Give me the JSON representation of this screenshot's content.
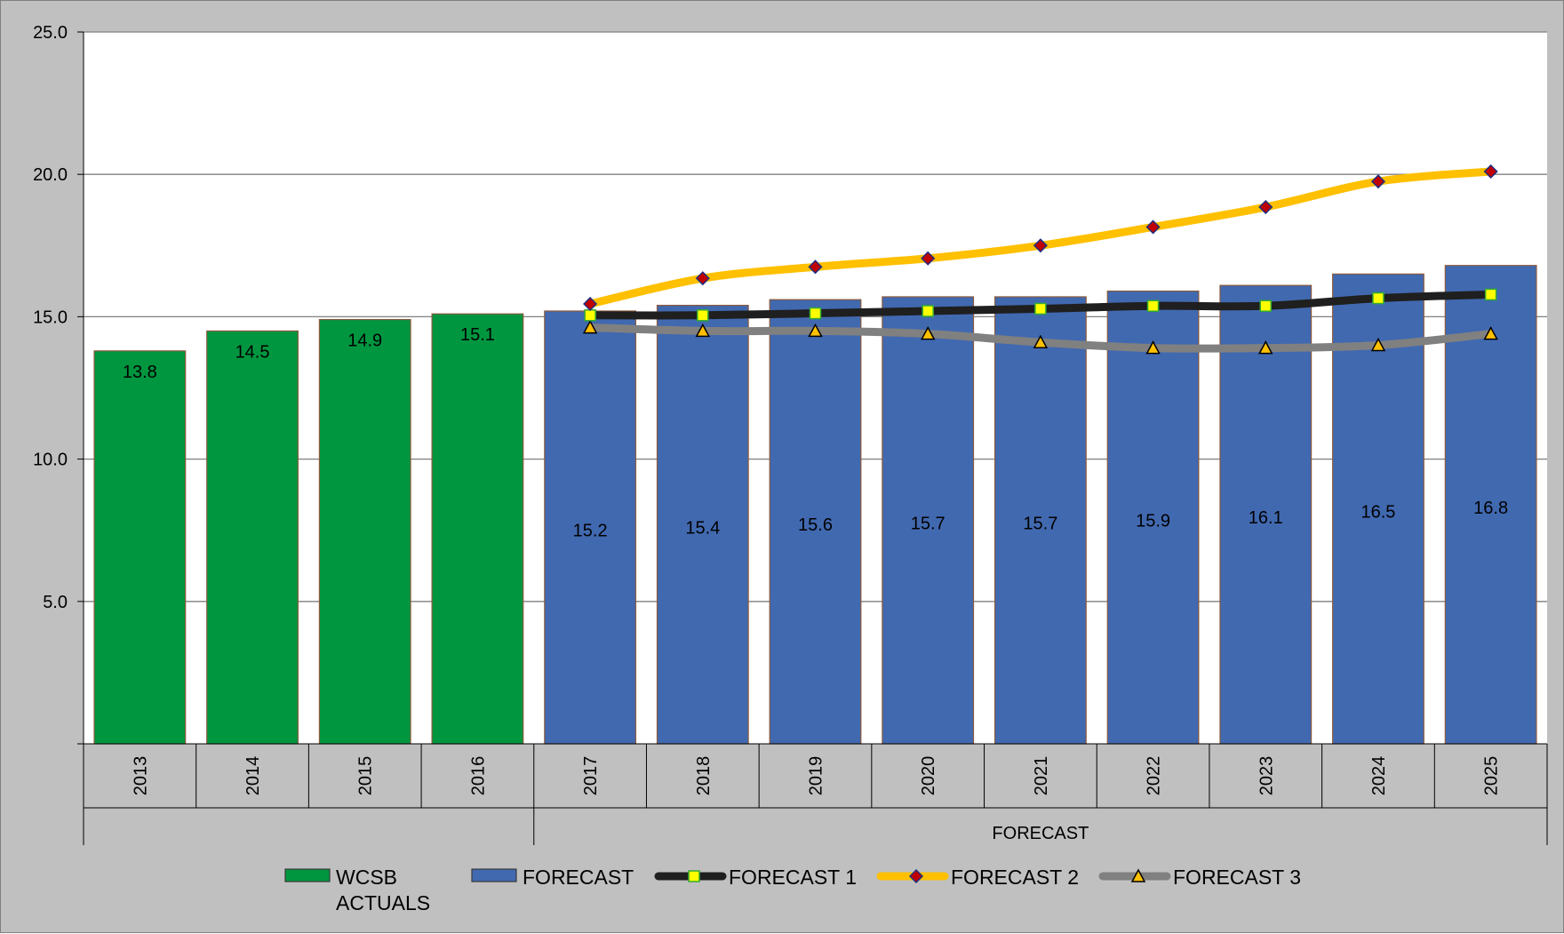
{
  "chart_data": {
    "type": "bar",
    "title": "",
    "xlabel": "",
    "ylabel": "",
    "ylim": [
      0,
      25
    ],
    "y_ticks": [
      "",
      "5.0",
      "10.0",
      "15.0",
      "20.0",
      "25.0"
    ],
    "grid": "horizontal",
    "legend_position": "bottom",
    "categories": [
      "2013",
      "2014",
      "2015",
      "2016",
      "2017",
      "2018",
      "2019",
      "2020",
      "2021",
      "2022",
      "2023",
      "2024",
      "2025"
    ],
    "category_groups": [
      {
        "label": "",
        "start": 0,
        "end": 3
      },
      {
        "label": "FORECAST",
        "start": 4,
        "end": 12
      }
    ],
    "bar_series": [
      {
        "name": "WCSB ACTUALS",
        "color": "#00963f",
        "start": 0,
        "values": [
          13.8,
          14.5,
          14.9,
          15.1
        ],
        "labels": [
          "13.8",
          "14.5",
          "14.9",
          "15.1"
        ]
      },
      {
        "name": "FORECAST",
        "color": "#4169b0",
        "start": 4,
        "values": [
          15.2,
          15.4,
          15.6,
          15.7,
          15.7,
          15.9,
          16.1,
          16.5,
          16.8
        ],
        "labels": [
          "15.2",
          "15.4",
          "15.6",
          "15.7",
          "15.7",
          "15.9",
          "16.1",
          "16.5",
          "16.8"
        ]
      }
    ],
    "line_series": [
      {
        "name": "FORECAST 1",
        "color": "#1f1f1f",
        "marker": "square",
        "marker_fill": "#ffff00",
        "marker_stroke": "#33aa33",
        "start": 4,
        "values": [
          15.05,
          15.05,
          15.12,
          15.2,
          15.28,
          15.38,
          15.38,
          15.65,
          15.78
        ]
      },
      {
        "name": "FORECAST 2",
        "color": "#ffc000",
        "marker": "diamond",
        "marker_fill": "#c00000",
        "marker_stroke": "#203080",
        "start": 4,
        "values": [
          15.45,
          16.35,
          16.75,
          17.05,
          17.5,
          18.15,
          18.85,
          19.75,
          20.1
        ]
      },
      {
        "name": "FORECAST 3",
        "color": "#808080",
        "marker": "triangle",
        "marker_fill": "#ffc000",
        "marker_stroke": "#000000",
        "start": 4,
        "values": [
          14.62,
          14.5,
          14.5,
          14.4,
          14.1,
          13.9,
          13.9,
          14.0,
          14.4
        ]
      }
    ],
    "legend": [
      {
        "kind": "bar",
        "series": "WCSB ACTUALS",
        "lines": [
          "WCSB",
          "ACTUALS"
        ]
      },
      {
        "kind": "bar",
        "series": "FORECAST",
        "lines": [
          "FORECAST"
        ]
      },
      {
        "kind": "line",
        "series": "FORECAST 1",
        "lines": [
          "FORECAST 1"
        ]
      },
      {
        "kind": "line",
        "series": "FORECAST 2",
        "lines": [
          "FORECAST 2"
        ]
      },
      {
        "kind": "line",
        "series": "FORECAST 3",
        "lines": [
          "FORECAST 3"
        ]
      }
    ]
  }
}
